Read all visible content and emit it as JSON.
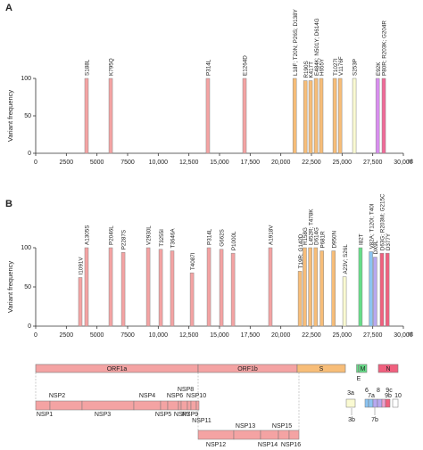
{
  "chart_data": [
    {
      "type": "bar",
      "panel": "A",
      "ylabel": "Variant frequency",
      "xunit": "nt",
      "x": [
        4150,
        6120,
        14050,
        17040,
        21130,
        22000,
        22430,
        22870,
        23300,
        24400,
        24840,
        26000,
        27900,
        28400
      ],
      "values": [
        100,
        100,
        100,
        100,
        100,
        97,
        97,
        100,
        100,
        100,
        100,
        100,
        100,
        100
      ],
      "labels": [
        "S188L",
        "K795Q",
        "P314L",
        "E1264D",
        "L18F; T20N; P26S; D138Y",
        "R190S",
        "K417T",
        "E484K; N501Y; D614G",
        "H655Y",
        "T1027I",
        "V1176F",
        "S253P",
        "E92K",
        "P80R; R203K; G204R"
      ],
      "colors": [
        "#f4a3a3",
        "#f4a3a3",
        "#f4a3a3",
        "#f4a3a3",
        "#f7bd78",
        "#f7bd78",
        "#f7bd78",
        "#f7bd78",
        "#f7bd78",
        "#f7bd78",
        "#f7bd78",
        "#fafad2",
        "#d98ef0",
        "#f06a98"
      ],
      "xlim": [
        0,
        30000
      ],
      "ylim": [
        0,
        100
      ],
      "xticks": [
        0,
        2500,
        5000,
        7500,
        {
          "value": 10000,
          "label": "10,000"
        },
        {
          "value": 12500,
          "label": "12,500"
        },
        {
          "value": 15000,
          "label": "15,000"
        },
        {
          "value": 17500,
          "label": "17,500"
        },
        {
          "value": 20000,
          "label": "20,000"
        },
        {
          "value": 22500,
          "label": "22,500"
        },
        {
          "value": 25000,
          "label": "25,000"
        },
        {
          "value": 27500,
          "label": "27,500"
        },
        {
          "value": 30000,
          "label": "30,000"
        }
      ],
      "yticks": [
        0,
        50,
        100
      ]
    },
    {
      "type": "bar",
      "panel": "B",
      "ylabel": "Variant frequency",
      "xunit": "nt",
      "x": [
        3640,
        4150,
        6120,
        7140,
        9180,
        10200,
        11140,
        12750,
        14130,
        15150,
        16100,
        19150,
        21560,
        21950,
        22400,
        22850,
        23350,
        24300,
        25200,
        26500,
        27350,
        27700,
        28250,
        28700
      ],
      "values": [
        62,
        100,
        100,
        94,
        100,
        98,
        96,
        68,
        100,
        98,
        93,
        100,
        70,
        100,
        100,
        100,
        96,
        96,
        63,
        100,
        95,
        88,
        93,
        93
      ],
      "labels": [
        "I1091V",
        "A1305S",
        "P2046L",
        "P2287S",
        "V2930L",
        "T3255I",
        "T3646A",
        "T4087I",
        "P314L",
        "G662S",
        "P1000L",
        "A1918V",
        "T19R; G142D",
        "R158G",
        "L452R; T478K",
        "D614G",
        "P681R",
        "D950N",
        "A23V; S26L",
        "I82T",
        "V82A; T120I; T40I",
        "DX9L",
        "D63G; R203M; G215C",
        "D377Y"
      ],
      "colors": [
        "#f4a3a3",
        "#f4a3a3",
        "#f4a3a3",
        "#f4a3a3",
        "#f4a3a3",
        "#f4a3a3",
        "#f4a3a3",
        "#f4a3a3",
        "#f4a3a3",
        "#f4a3a3",
        "#f4a3a3",
        "#f4a3a3",
        "#f7bd78",
        "#f7bd78",
        "#f7bd78",
        "#f7bd78",
        "#f7bd78",
        "#f7bd78",
        "#fafad2",
        "#66dd88",
        "#8cc4f2",
        "#b7a8f0",
        "#f0607e",
        "#f0607e"
      ],
      "xlim": [
        0,
        30000
      ],
      "ylim": [
        0,
        100
      ],
      "xticks": [
        0,
        2500,
        5000,
        7500,
        {
          "value": 10000,
          "label": "10,000"
        },
        {
          "value": 12500,
          "label": "12,500"
        },
        {
          "value": 15000,
          "label": "15,000"
        },
        {
          "value": 17500,
          "label": "17,500"
        },
        {
          "value": 20000,
          "label": "20,000"
        },
        {
          "value": 22500,
          "label": "22,500"
        },
        {
          "value": 25000,
          "label": "25,000"
        },
        {
          "value": 27500,
          "label": "27,500"
        },
        {
          "value": 30000,
          "label": "30,000"
        }
      ],
      "yticks": [
        0,
        50,
        100
      ]
    }
  ],
  "genome": {
    "orfs": [
      "ORF1a",
      "ORF1b",
      "S",
      "E",
      "M",
      "N"
    ],
    "nsp_row1": [
      "NSP1",
      "NSP2",
      "NSP3",
      "NSP4",
      "NSP5",
      "NSP6",
      "NSP7",
      "NSP8",
      "NSP9",
      "NSP10",
      "NSP11"
    ],
    "nsp_row2": [
      "NSP12",
      "NSP13",
      "NSP14",
      "NSP15",
      "NSP16"
    ],
    "accessory": [
      "3a",
      "3b",
      "6",
      "7a",
      "8",
      "9c",
      "7b",
      "9b",
      "10"
    ]
  }
}
